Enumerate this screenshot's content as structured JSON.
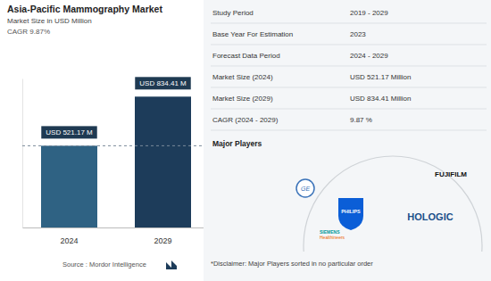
{
  "chart_data": {
    "type": "bar",
    "title": "Asia-Pacific Mammography Market",
    "subtitle": "Market Size in USD Million",
    "annotations": [
      "CAGR 9.87%"
    ],
    "categories": [
      "2024",
      "2029"
    ],
    "values": [
      521.17,
      834.41
    ],
    "value_labels": [
      "USD 521.17 M",
      "USD 834.41 M"
    ],
    "data_labels": true,
    "colors": [
      "#2f6283",
      "#1d3c5a"
    ],
    "ylim": [
      0,
      950
    ],
    "yticks": [],
    "tick_labels": "x",
    "grid": false,
    "source": "Source : Mordor Intelligence"
  },
  "table": {
    "rows": [
      [
        "Study Period",
        "2019 - 2029"
      ],
      [
        "Base Year For Estimation",
        "2023"
      ],
      [
        "Forecast Data Period",
        "2024 - 2029"
      ],
      [
        "Market Size (2024)",
        "USD 521.17 Million"
      ],
      [
        "Market Size (2029)",
        "USD 834.41 Million"
      ],
      [
        "CAGR (2024 - 2029)",
        "9.87 %"
      ]
    ]
  },
  "major_players": {
    "title": "Major Players",
    "logos": [
      "GE",
      "FUJIFILM",
      "PHILIPS",
      "HOLOGIC",
      "SIEMENS Healthineers"
    ]
  },
  "disclaimer": "*Disclaimer: Major Players sorted in no particular order"
}
